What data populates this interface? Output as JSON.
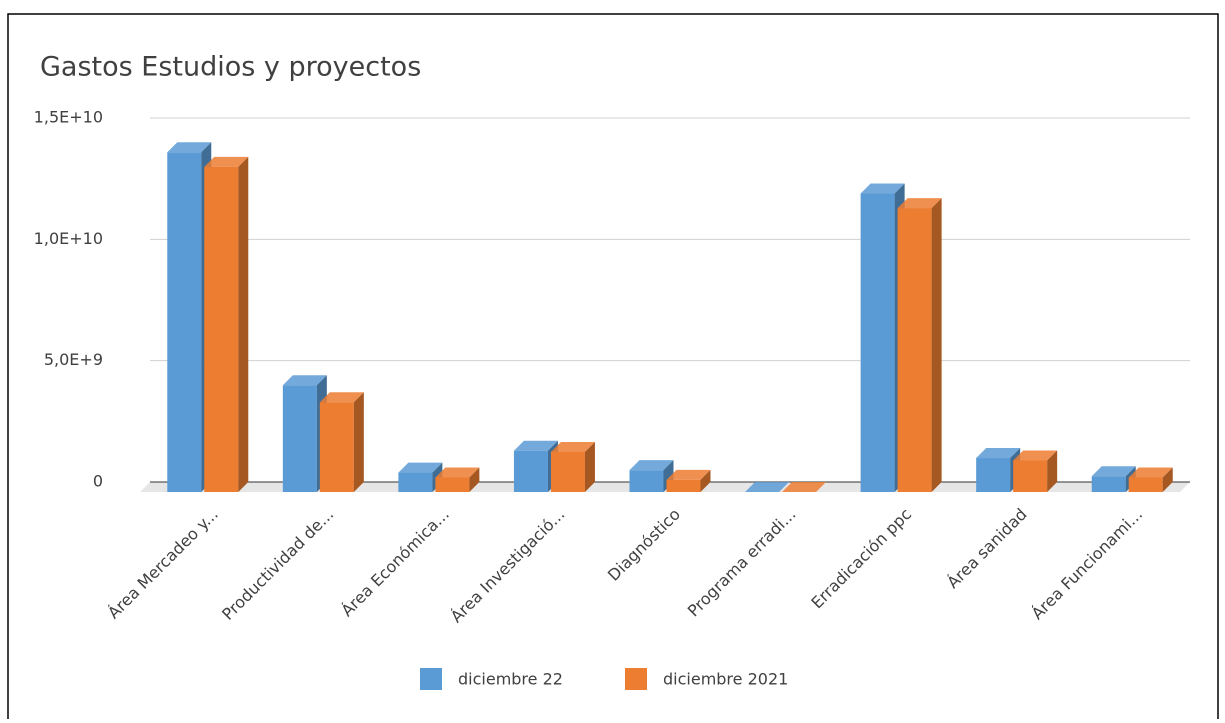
{
  "chart_data": {
    "type": "bar3d",
    "title": "Gastos Estudios y proyectos",
    "categories": [
      "Área Mercadeo y...",
      "Productividad de...",
      "Área Económica...",
      "Área Investigació...",
      "Diagnóstico",
      "Programa erradi...",
      "Erradicación ppc",
      "Área sanidad",
      "Área Funcionami..."
    ],
    "series": [
      {
        "name": "diciembre 22",
        "color": "#5b9bd5",
        "values": [
          14000000000,
          4400000000,
          800000000,
          1700000000,
          900000000,
          0,
          12300000000,
          1400000000,
          650000000
        ]
      },
      {
        "name": "diciembre 2021",
        "color": "#ed7d31",
        "values": [
          13400000000,
          3700000000,
          600000000,
          1650000000,
          500000000,
          0,
          11700000000,
          1300000000,
          600000000
        ]
      }
    ],
    "ylim": [
      0,
      15000000000
    ],
    "yticks": [
      {
        "value": 0,
        "label": "0"
      },
      {
        "value": 5000000000,
        "label": "5,0E+9"
      },
      {
        "value": 10000000000,
        "label": "1,0E+10"
      },
      {
        "value": 15000000000,
        "label": "1,5E+10"
      }
    ],
    "grid": true,
    "legend": "bottom"
  }
}
